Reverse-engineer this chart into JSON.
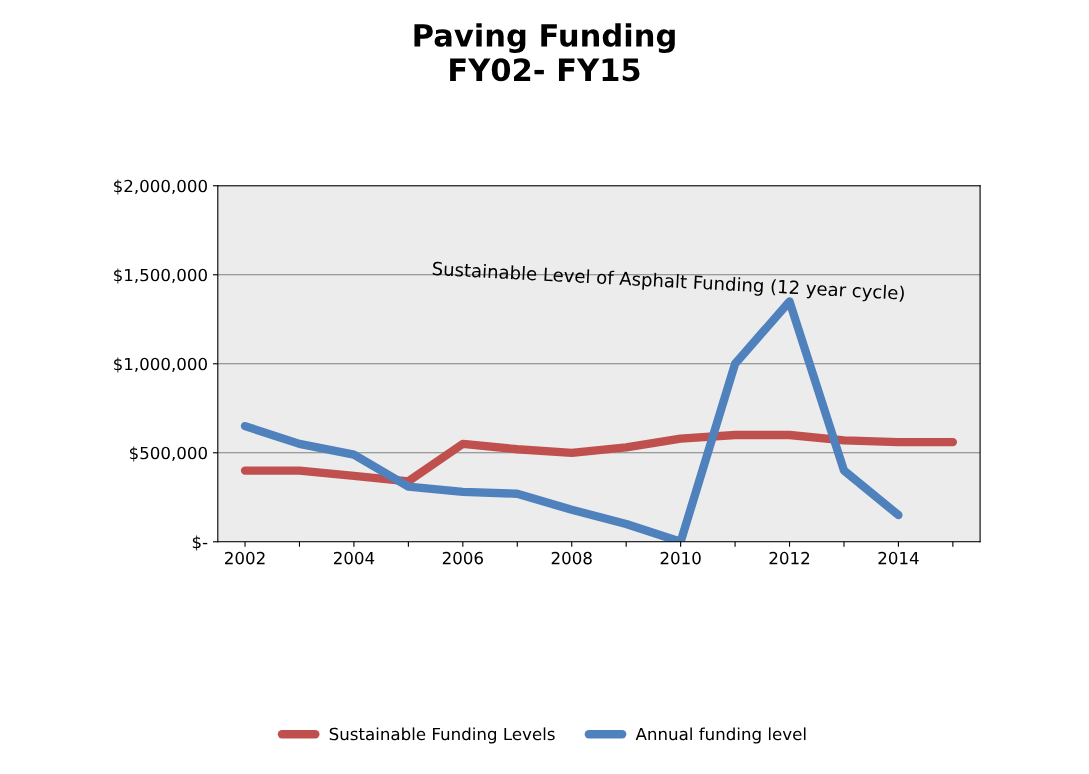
{
  "chart_data": {
    "type": "line",
    "title": "Paving Funding\nFY02- FY15",
    "categories": [
      "2002",
      null,
      "2004",
      null,
      "2006",
      null,
      "2008",
      null,
      "2010",
      null,
      "2012",
      null,
      "2014",
      null
    ],
    "series": [
      {
        "name": "Sustainable Funding Levels",
        "color": "#c0504d",
        "values": [
          400000,
          400000,
          370000,
          340000,
          550000,
          520000,
          500000,
          530000,
          580000,
          600000,
          600000,
          570000,
          560000,
          560000
        ]
      },
      {
        "name": "Annual funding level",
        "color": "#4f81bd",
        "values": [
          650000,
          550000,
          490000,
          310000,
          280000,
          270000,
          180000,
          100000,
          0,
          1000000,
          1350000,
          400000,
          150000,
          null
        ]
      }
    ],
    "ylim": [
      0,
      2000000
    ],
    "yticks": [
      {
        "value": 0,
        "label": "$-"
      },
      {
        "value": 500000,
        "label": "$500,000"
      },
      {
        "value": 1000000,
        "label": "$1,000,000"
      },
      {
        "value": 1500000,
        "label": "$1,500,000"
      },
      {
        "value": 2000000,
        "label": "$2,000,000"
      }
    ],
    "annotations": [
      "Sustainable Level of Asphalt Funding (12 year cycle)"
    ],
    "grid": "y",
    "legend": "bottom",
    "marker": "none",
    "line_style": "solid"
  }
}
